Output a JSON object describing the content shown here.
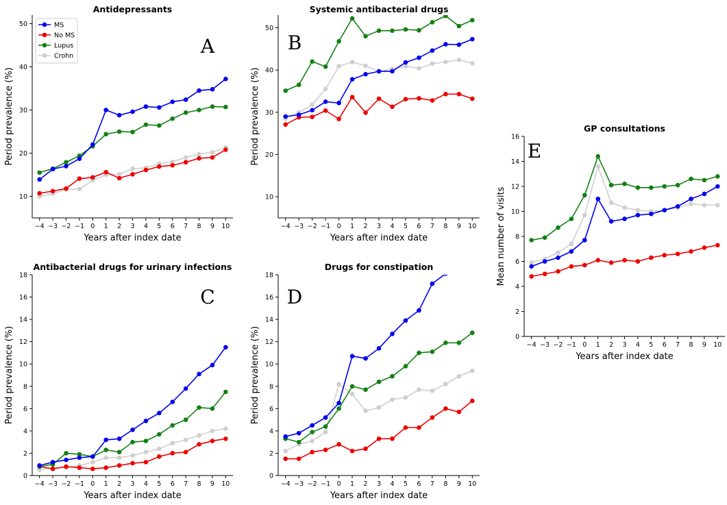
{
  "legend": {
    "entries": [
      {
        "name": "MS",
        "color": "#0000ee"
      },
      {
        "name": "No MS",
        "color": "#ee0000"
      },
      {
        "name": "Lupus",
        "color": "#138013"
      },
      {
        "name": "Crohn",
        "color": "#cfcfcf"
      }
    ]
  },
  "chart_data": [
    {
      "type": "line",
      "panel": "A",
      "title": "Antidepressants",
      "xlabel": "Years after index date",
      "ylabel": "Period prevalence (%)",
      "x": [
        -4,
        -3,
        -2,
        -1,
        0,
        1,
        2,
        3,
        4,
        5,
        6,
        7,
        8,
        9,
        10
      ],
      "ylim": [
        5,
        52
      ],
      "yticks": [
        10,
        20,
        30,
        40,
        50
      ],
      "series": [
        {
          "name": "MS",
          "color": "#0000ee",
          "values": [
            13.9,
            16.3,
            17,
            18.7,
            22,
            30,
            28.8,
            29.6,
            30.8,
            30.6,
            31.9,
            32.4,
            34.5,
            34.8,
            37.2
          ]
        },
        {
          "name": "No MS",
          "color": "#ee0000",
          "values": [
            10.7,
            11.2,
            11.8,
            14.1,
            14.4,
            15.6,
            14.2,
            15.1,
            16.1,
            16.9,
            17.2,
            17.9,
            18.8,
            19,
            20.8
          ]
        },
        {
          "name": "Lupus",
          "color": "#138013",
          "values": [
            15.5,
            16.4,
            17.9,
            19.4,
            21.6,
            24.4,
            25,
            24.9,
            26.6,
            26.4,
            28,
            29.4,
            30,
            30.8,
            30.7
          ]
        },
        {
          "name": "Crohn",
          "color": "#cfcfcf",
          "values": [
            10,
            10.6,
            11.6,
            11.7,
            13.7,
            15,
            15.1,
            16.4,
            16.6,
            17.6,
            18,
            19,
            19.8,
            20.2,
            21.3
          ]
        }
      ]
    },
    {
      "type": "line",
      "panel": "B",
      "title": "Systemic antibacterial drugs",
      "xlabel": "Years after index date",
      "ylabel": "Period prevalence (%)",
      "x": [
        -4,
        -3,
        -2,
        -1,
        0,
        1,
        2,
        3,
        4,
        5,
        6,
        7,
        8,
        9,
        10
      ],
      "ylim": [
        5,
        53
      ],
      "yticks": [
        10,
        20,
        30,
        40,
        50
      ],
      "series": [
        {
          "name": "MS",
          "color": "#0000ee",
          "values": [
            29,
            29.4,
            30.5,
            32.5,
            32.2,
            37.8,
            39,
            39.7,
            39.7,
            41.8,
            42.9,
            44.6,
            46.1,
            46,
            47.3
          ]
        },
        {
          "name": "No MS",
          "color": "#ee0000",
          "values": [
            27.1,
            28.8,
            28.9,
            30.4,
            28.4,
            33.6,
            29.9,
            33.2,
            31.3,
            33.1,
            33.3,
            32.8,
            34.3,
            34.3,
            33.2
          ]
        },
        {
          "name": "Lupus",
          "color": "#138013",
          "values": [
            35.1,
            36.5,
            42,
            40.8,
            46.8,
            52.2,
            48,
            49.3,
            49.3,
            49.6,
            49.4,
            51.3,
            52.8,
            50.4,
            51.8
          ]
        },
        {
          "name": "Crohn",
          "color": "#cfcfcf",
          "values": [
            28.5,
            30,
            31.8,
            35.5,
            40.9,
            41.9,
            41,
            39.6,
            40.3,
            40.9,
            40.4,
            41.5,
            41.9,
            42.4,
            41.6
          ]
        }
      ]
    },
    {
      "type": "line",
      "panel": "C",
      "title": "Antibacterial drugs for urinary infections",
      "xlabel": "Years after index date",
      "ylabel": "Period prevalence (%)",
      "x": [
        -4,
        -3,
        -2,
        -1,
        0,
        1,
        2,
        3,
        4,
        5,
        6,
        7,
        8,
        9,
        10
      ],
      "ylim": [
        0,
        18
      ],
      "yticks": [
        0,
        2,
        4,
        6,
        8,
        10,
        12,
        14,
        16,
        18
      ],
      "series": [
        {
          "name": "MS",
          "color": "#0000ee",
          "values": [
            0.9,
            1.2,
            1.4,
            1.6,
            1.7,
            3.2,
            3.3,
            4.1,
            4.9,
            5.6,
            6.6,
            7.8,
            9.1,
            9.9,
            11.5
          ]
        },
        {
          "name": "No MS",
          "color": "#ee0000",
          "values": [
            0.8,
            0.6,
            0.8,
            0.7,
            0.6,
            0.7,
            0.9,
            1.1,
            1.2,
            1.7,
            2,
            2.1,
            2.8,
            3.1,
            3.3
          ]
        },
        {
          "name": "Lupus",
          "color": "#138013",
          "values": [
            0.8,
            1,
            2,
            1.9,
            1.7,
            2.3,
            2.1,
            3,
            3.1,
            3.7,
            4.5,
            5,
            6.1,
            6,
            7.5
          ]
        },
        {
          "name": "Crohn",
          "color": "#cfcfcf",
          "values": [
            0.5,
            0.7,
            0.7,
            0.9,
            1.2,
            1.6,
            1.6,
            1.8,
            2.1,
            2.4,
            2.9,
            3.2,
            3.6,
            4,
            4.2
          ]
        }
      ]
    },
    {
      "type": "line",
      "panel": "D",
      "title": "Drugs for constipation",
      "xlabel": "Years after index date",
      "ylabel": "Period prevalence (%)",
      "x": [
        -4,
        -3,
        -2,
        -1,
        0,
        1,
        2,
        3,
        4,
        5,
        6,
        7,
        8,
        9,
        10
      ],
      "ylim": [
        0,
        18
      ],
      "yticks": [
        0,
        2,
        4,
        6,
        8,
        10,
        12,
        14,
        16,
        18
      ],
      "series": [
        {
          "name": "MS",
          "color": "#0000ee",
          "values": [
            3.5,
            3.8,
            4.5,
            5.2,
            6.5,
            10.7,
            10.5,
            11.4,
            12.7,
            13.9,
            14.8,
            17.2,
            18.1,
            null,
            null
          ]
        },
        {
          "name": "No MS",
          "color": "#ee0000",
          "values": [
            1.5,
            1.5,
            2.1,
            2.3,
            2.8,
            2.2,
            2.4,
            3.3,
            3.3,
            4.3,
            4.3,
            5.2,
            6,
            5.7,
            6.7
          ]
        },
        {
          "name": "Lupus",
          "color": "#138013",
          "values": [
            3.3,
            3,
            3.9,
            4.4,
            6,
            8,
            7.7,
            8.4,
            8.9,
            9.8,
            11,
            11.1,
            11.9,
            11.9,
            12.8
          ]
        },
        {
          "name": "Crohn",
          "color": "#cfcfcf",
          "values": [
            2.2,
            2.8,
            3.1,
            3.9,
            8.2,
            7.3,
            5.8,
            6.1,
            6.8,
            7,
            7.7,
            7.6,
            8.2,
            8.9,
            9.4
          ]
        }
      ]
    },
    {
      "type": "line",
      "panel": "E",
      "title": "GP consultations",
      "xlabel": "Years after index date",
      "ylabel": "Mean number of visits",
      "x": [
        -4,
        -3,
        -2,
        -1,
        0,
        1,
        2,
        3,
        4,
        5,
        6,
        7,
        8,
        9,
        10
      ],
      "ylim": [
        0,
        16
      ],
      "yticks": [
        0,
        2,
        4,
        6,
        8,
        10,
        12,
        14,
        16
      ],
      "series": [
        {
          "name": "MS",
          "color": "#0000ee",
          "values": [
            5.6,
            6,
            6.3,
            6.8,
            7.7,
            11,
            9.2,
            9.4,
            9.7,
            9.8,
            10.1,
            10.4,
            11,
            11.4,
            12
          ]
        },
        {
          "name": "No MS",
          "color": "#ee0000",
          "values": [
            4.8,
            5,
            5.2,
            5.6,
            5.7,
            6.1,
            5.9,
            6.1,
            6,
            6.3,
            6.5,
            6.6,
            6.8,
            7.1,
            7.3
          ]
        },
        {
          "name": "Lupus",
          "color": "#138013",
          "values": [
            7.7,
            7.9,
            8.7,
            9.4,
            11.3,
            14.4,
            12.1,
            12.2,
            11.9,
            11.9,
            12,
            12.1,
            12.6,
            12.5,
            12.8
          ]
        },
        {
          "name": "Crohn",
          "color": "#cfcfcf",
          "values": [
            5.9,
            6.2,
            6.7,
            7.4,
            9.7,
            13.6,
            10.7,
            10.3,
            10.1,
            10,
            10.1,
            10.3,
            10.6,
            10.5,
            10.5
          ]
        }
      ]
    }
  ]
}
